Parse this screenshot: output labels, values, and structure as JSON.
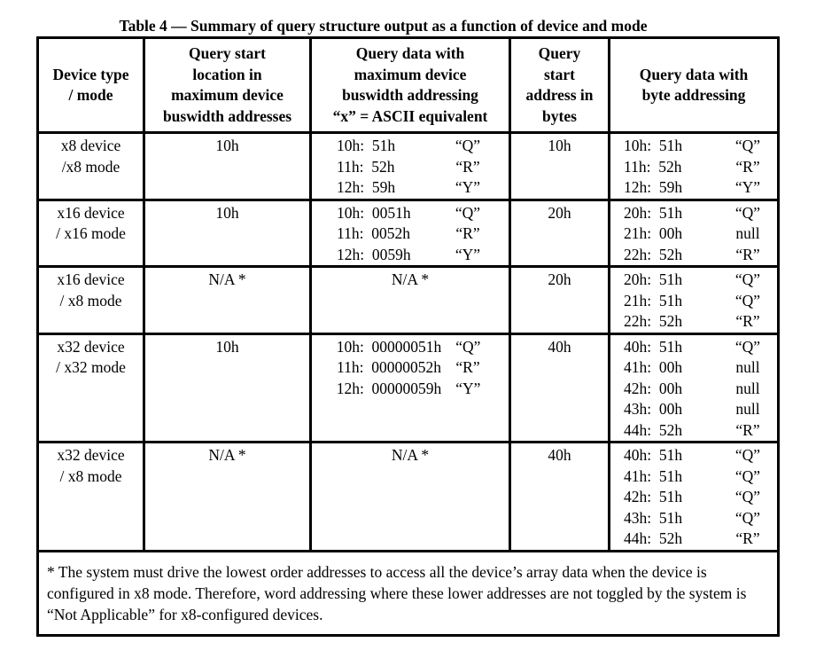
{
  "title": "Table 4 — Summary of query structure output as a function of device and mode",
  "table": {
    "headers": [
      [
        "Device type",
        "/ mode"
      ],
      [
        "Query start",
        "location in",
        "maximum device",
        "buswidth addresses"
      ],
      [
        "Query data with",
        "maximum device",
        "buswidth addressing",
        "“x” = ASCII equivalent"
      ],
      [
        "Query",
        "start",
        "address in",
        "bytes"
      ],
      [
        "Query data with",
        "byte addressing"
      ]
    ],
    "rows": [
      [
        [
          "x8 device",
          "/x8 mode"
        ],
        "10h",
        [
          [
            "10h:  51h",
            "“Q”"
          ],
          [
            "11h:  52h",
            "“R”"
          ],
          [
            "12h:  59h",
            "“Y”"
          ]
        ],
        "10h",
        [
          [
            "10h:  51h",
            "“Q”"
          ],
          [
            "11h:  52h",
            "“R”"
          ],
          [
            "12h:  59h",
            "“Y”"
          ]
        ]
      ],
      [
        [
          "x16 device",
          "/ x16 mode"
        ],
        "10h",
        [
          [
            "10h:  0051h",
            "“Q”"
          ],
          [
            "11h:  0052h",
            "“R”"
          ],
          [
            "12h:  0059h",
            "“Y”"
          ]
        ],
        "20h",
        [
          [
            "20h:  51h",
            "“Q”"
          ],
          [
            "21h:  00h",
            "null"
          ],
          [
            "22h:  52h",
            "“R”"
          ]
        ]
      ],
      [
        [
          "x16 device",
          "/ x8 mode"
        ],
        "N/A *",
        "N/A *",
        "20h",
        [
          [
            "20h:  51h",
            "“Q”"
          ],
          [
            "21h:  51h",
            "“Q”"
          ],
          [
            "22h:  52h",
            "“R”"
          ]
        ]
      ],
      [
        [
          "x32 device",
          "/ x32 mode"
        ],
        "10h",
        [
          [
            "10h:  00000051h",
            "“Q”"
          ],
          [
            "11h:  00000052h",
            "“R”"
          ],
          [
            "12h:  00000059h",
            "“Y”"
          ]
        ],
        "40h",
        [
          [
            "40h:  51h",
            "“Q”"
          ],
          [
            "41h:  00h",
            "null"
          ],
          [
            "42h:  00h",
            "null"
          ],
          [
            "43h:  00h",
            "null"
          ],
          [
            "44h:  52h",
            "“R”"
          ]
        ]
      ],
      [
        [
          "x32 device",
          "/ x8 mode"
        ],
        "N/A *",
        "N/A *",
        "40h",
        [
          [
            "40h:  51h",
            "“Q”"
          ],
          [
            "41h:  51h",
            "“Q”"
          ],
          [
            "42h:  51h",
            "“Q”"
          ],
          [
            "43h:  51h",
            "“Q”"
          ],
          [
            "44h:  52h",
            "“R”"
          ]
        ]
      ]
    ]
  },
  "footnote": "*  The system must drive the lowest order addresses to access all the device’s array data when the device is configured in x8 mode.  Therefore, word addressing where these lower addresses are not toggled by the system is “Not Applicable” for x8-configured devices."
}
